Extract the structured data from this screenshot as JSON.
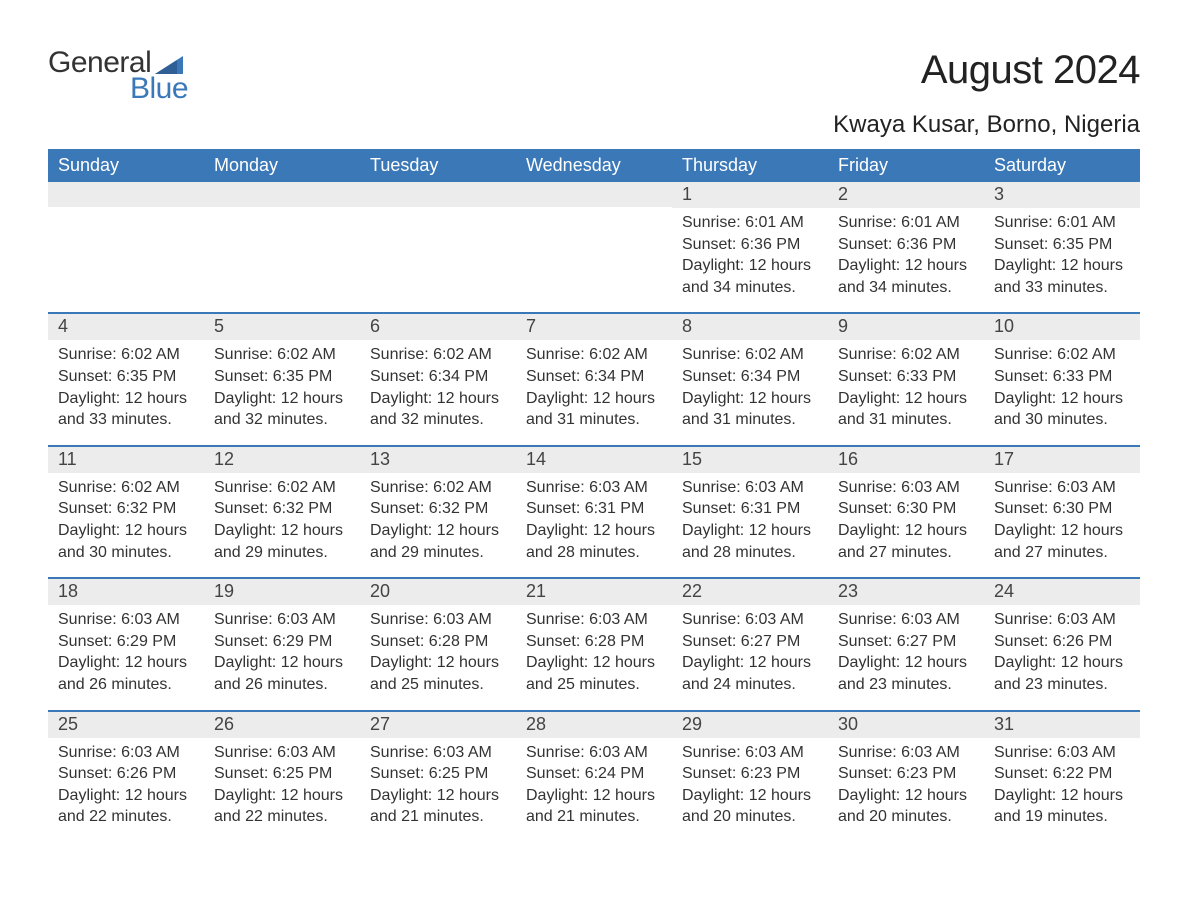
{
  "logo": {
    "text_general": "General",
    "text_blue": "Blue",
    "flag_color": "#3b78b8"
  },
  "header": {
    "month_title": "August 2024",
    "location": "Kwaya Kusar, Borno, Nigeria"
  },
  "colors": {
    "header_bg": "#3b78b8",
    "header_text": "#ffffff",
    "daynum_bg": "#ececec",
    "body_text": "#333333",
    "week_divider": "#3b78b8",
    "page_bg": "#ffffff"
  },
  "typography": {
    "month_title_fontsize": 40,
    "location_fontsize": 24,
    "dow_fontsize": 18,
    "daynum_fontsize": 18,
    "body_fontsize": 16,
    "font_family": "Arial"
  },
  "days_of_week": [
    "Sunday",
    "Monday",
    "Tuesday",
    "Wednesday",
    "Thursday",
    "Friday",
    "Saturday"
  ],
  "labels": {
    "sunrise": "Sunrise:",
    "sunset": "Sunset:",
    "daylight": "Daylight:"
  },
  "weeks": [
    [
      null,
      null,
      null,
      null,
      {
        "n": "1",
        "sunrise": "6:01 AM",
        "sunset": "6:36 PM",
        "daylight": "12 hours and 34 minutes."
      },
      {
        "n": "2",
        "sunrise": "6:01 AM",
        "sunset": "6:36 PM",
        "daylight": "12 hours and 34 minutes."
      },
      {
        "n": "3",
        "sunrise": "6:01 AM",
        "sunset": "6:35 PM",
        "daylight": "12 hours and 33 minutes."
      }
    ],
    [
      {
        "n": "4",
        "sunrise": "6:02 AM",
        "sunset": "6:35 PM",
        "daylight": "12 hours and 33 minutes."
      },
      {
        "n": "5",
        "sunrise": "6:02 AM",
        "sunset": "6:35 PM",
        "daylight": "12 hours and 32 minutes."
      },
      {
        "n": "6",
        "sunrise": "6:02 AM",
        "sunset": "6:34 PM",
        "daylight": "12 hours and 32 minutes."
      },
      {
        "n": "7",
        "sunrise": "6:02 AM",
        "sunset": "6:34 PM",
        "daylight": "12 hours and 31 minutes."
      },
      {
        "n": "8",
        "sunrise": "6:02 AM",
        "sunset": "6:34 PM",
        "daylight": "12 hours and 31 minutes."
      },
      {
        "n": "9",
        "sunrise": "6:02 AM",
        "sunset": "6:33 PM",
        "daylight": "12 hours and 31 minutes."
      },
      {
        "n": "10",
        "sunrise": "6:02 AM",
        "sunset": "6:33 PM",
        "daylight": "12 hours and 30 minutes."
      }
    ],
    [
      {
        "n": "11",
        "sunrise": "6:02 AM",
        "sunset": "6:32 PM",
        "daylight": "12 hours and 30 minutes."
      },
      {
        "n": "12",
        "sunrise": "6:02 AM",
        "sunset": "6:32 PM",
        "daylight": "12 hours and 29 minutes."
      },
      {
        "n": "13",
        "sunrise": "6:02 AM",
        "sunset": "6:32 PM",
        "daylight": "12 hours and 29 minutes."
      },
      {
        "n": "14",
        "sunrise": "6:03 AM",
        "sunset": "6:31 PM",
        "daylight": "12 hours and 28 minutes."
      },
      {
        "n": "15",
        "sunrise": "6:03 AM",
        "sunset": "6:31 PM",
        "daylight": "12 hours and 28 minutes."
      },
      {
        "n": "16",
        "sunrise": "6:03 AM",
        "sunset": "6:30 PM",
        "daylight": "12 hours and 27 minutes."
      },
      {
        "n": "17",
        "sunrise": "6:03 AM",
        "sunset": "6:30 PM",
        "daylight": "12 hours and 27 minutes."
      }
    ],
    [
      {
        "n": "18",
        "sunrise": "6:03 AM",
        "sunset": "6:29 PM",
        "daylight": "12 hours and 26 minutes."
      },
      {
        "n": "19",
        "sunrise": "6:03 AM",
        "sunset": "6:29 PM",
        "daylight": "12 hours and 26 minutes."
      },
      {
        "n": "20",
        "sunrise": "6:03 AM",
        "sunset": "6:28 PM",
        "daylight": "12 hours and 25 minutes."
      },
      {
        "n": "21",
        "sunrise": "6:03 AM",
        "sunset": "6:28 PM",
        "daylight": "12 hours and 25 minutes."
      },
      {
        "n": "22",
        "sunrise": "6:03 AM",
        "sunset": "6:27 PM",
        "daylight": "12 hours and 24 minutes."
      },
      {
        "n": "23",
        "sunrise": "6:03 AM",
        "sunset": "6:27 PM",
        "daylight": "12 hours and 23 minutes."
      },
      {
        "n": "24",
        "sunrise": "6:03 AM",
        "sunset": "6:26 PM",
        "daylight": "12 hours and 23 minutes."
      }
    ],
    [
      {
        "n": "25",
        "sunrise": "6:03 AM",
        "sunset": "6:26 PM",
        "daylight": "12 hours and 22 minutes."
      },
      {
        "n": "26",
        "sunrise": "6:03 AM",
        "sunset": "6:25 PM",
        "daylight": "12 hours and 22 minutes."
      },
      {
        "n": "27",
        "sunrise": "6:03 AM",
        "sunset": "6:25 PM",
        "daylight": "12 hours and 21 minutes."
      },
      {
        "n": "28",
        "sunrise": "6:03 AM",
        "sunset": "6:24 PM",
        "daylight": "12 hours and 21 minutes."
      },
      {
        "n": "29",
        "sunrise": "6:03 AM",
        "sunset": "6:23 PM",
        "daylight": "12 hours and 20 minutes."
      },
      {
        "n": "30",
        "sunrise": "6:03 AM",
        "sunset": "6:23 PM",
        "daylight": "12 hours and 20 minutes."
      },
      {
        "n": "31",
        "sunrise": "6:03 AM",
        "sunset": "6:22 PM",
        "daylight": "12 hours and 19 minutes."
      }
    ]
  ]
}
